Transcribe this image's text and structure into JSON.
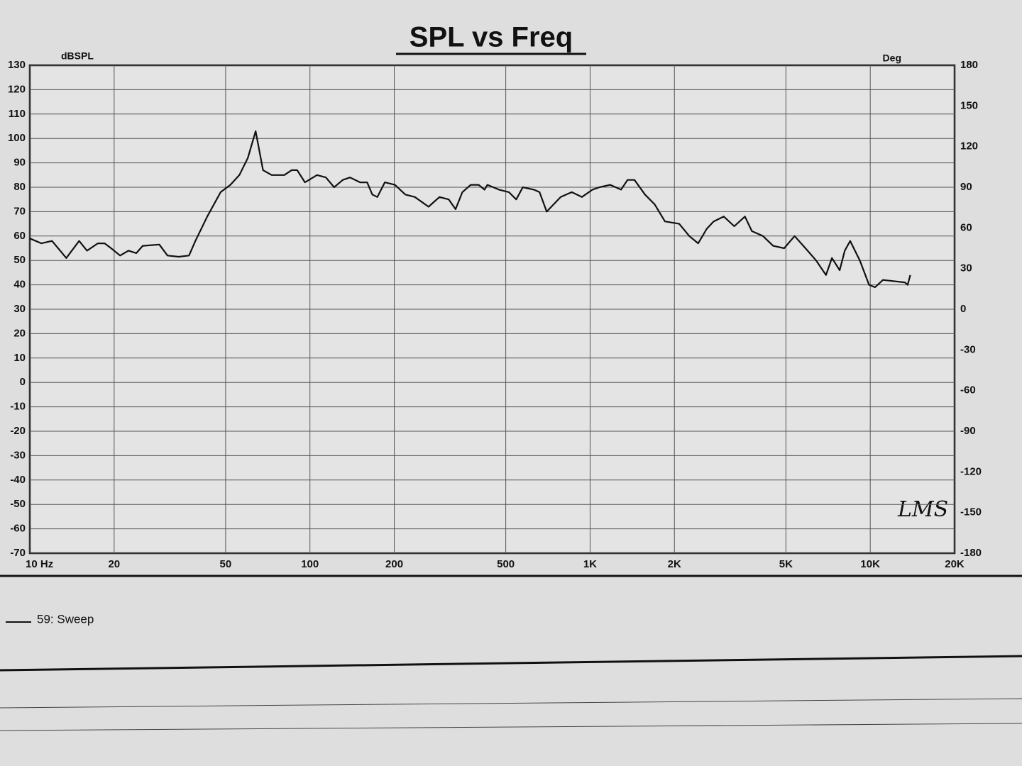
{
  "chart_data": {
    "type": "line",
    "title": "SPL vs Freq",
    "y_label": "dBSPL",
    "y2_label": "Deg",
    "annotation": "LMS",
    "log_x": true,
    "grid": true,
    "legend": "bottom-left",
    "xlim": [
      10,
      20000
    ],
    "xticks": [
      {
        "value": 10,
        "label": "10 Hz"
      },
      20,
      50,
      100,
      200,
      500,
      {
        "value": 1000,
        "label": "1K"
      },
      {
        "value": 2000,
        "label": "2K"
      },
      {
        "value": 5000,
        "label": "5K"
      },
      {
        "value": 10000,
        "label": "10K"
      },
      {
        "value": 20000,
        "label": "20K"
      }
    ],
    "ylim": [
      -70,
      130
    ],
    "yticks": [
      -70,
      -60,
      -50,
      -40,
      -30,
      -20,
      -10,
      0,
      10,
      20,
      30,
      40,
      50,
      60,
      70,
      80,
      90,
      100,
      110,
      120,
      130
    ],
    "y2lim": [
      -180,
      180
    ],
    "y2ticks": [
      -180,
      -150,
      -120,
      -90,
      -60,
      -30,
      0,
      30,
      60,
      90,
      120,
      150,
      180
    ],
    "x": [
      10,
      11,
      12,
      13.5,
      15,
      16,
      17.5,
      18.5,
      19.5,
      21,
      22.5,
      24,
      25.3,
      29,
      31,
      34,
      37,
      39,
      43,
      48,
      52,
      56,
      60,
      64,
      68,
      73,
      81,
      86,
      90,
      96,
      106,
      114,
      122,
      131,
      139,
      151,
      160,
      167,
      174,
      185,
      201,
      219,
      237,
      265,
      290,
      313,
      331,
      350,
      375,
      400,
      420,
      430,
      473,
      513,
      545,
      575,
      630,
      660,
      700,
      785,
      860,
      935,
      1020,
      1080,
      1180,
      1290,
      1360,
      1440,
      1570,
      1700,
      1850,
      2080,
      2260,
      2430,
      2610,
      2760,
      3000,
      3270,
      3570,
      3780,
      4140,
      4500,
      4930,
      5370,
      5870,
      6410,
      6950,
      7300,
      7780,
      8110,
      8480,
      9180,
      9900,
      10400,
      11100,
      13300,
      13600,
      13900
    ],
    "series": [
      {
        "name": "59: Sweep",
        "color": "#111111",
        "values": [
          59,
          57,
          58,
          51,
          58,
          54,
          57,
          57,
          55,
          52,
          54,
          53,
          56,
          56.5,
          52,
          51.5,
          52,
          58,
          68,
          78,
          81,
          85,
          92,
          103,
          87,
          85,
          85,
          87,
          87,
          82,
          85,
          84,
          80,
          83,
          84,
          82,
          82,
          77,
          76,
          82,
          81,
          77,
          76,
          72,
          76,
          75,
          71,
          78,
          81,
          81,
          79,
          81,
          79,
          78,
          75,
          80,
          79,
          78,
          70,
          76,
          78,
          76,
          79,
          80,
          81,
          79,
          83,
          83,
          77,
          73,
          66,
          65,
          60,
          57,
          63,
          66,
          68,
          64,
          68,
          62,
          60,
          56,
          55,
          60,
          55,
          50,
          44,
          51,
          46,
          54,
          58,
          50,
          40,
          39,
          42,
          41,
          40,
          44
        ]
      }
    ]
  }
}
